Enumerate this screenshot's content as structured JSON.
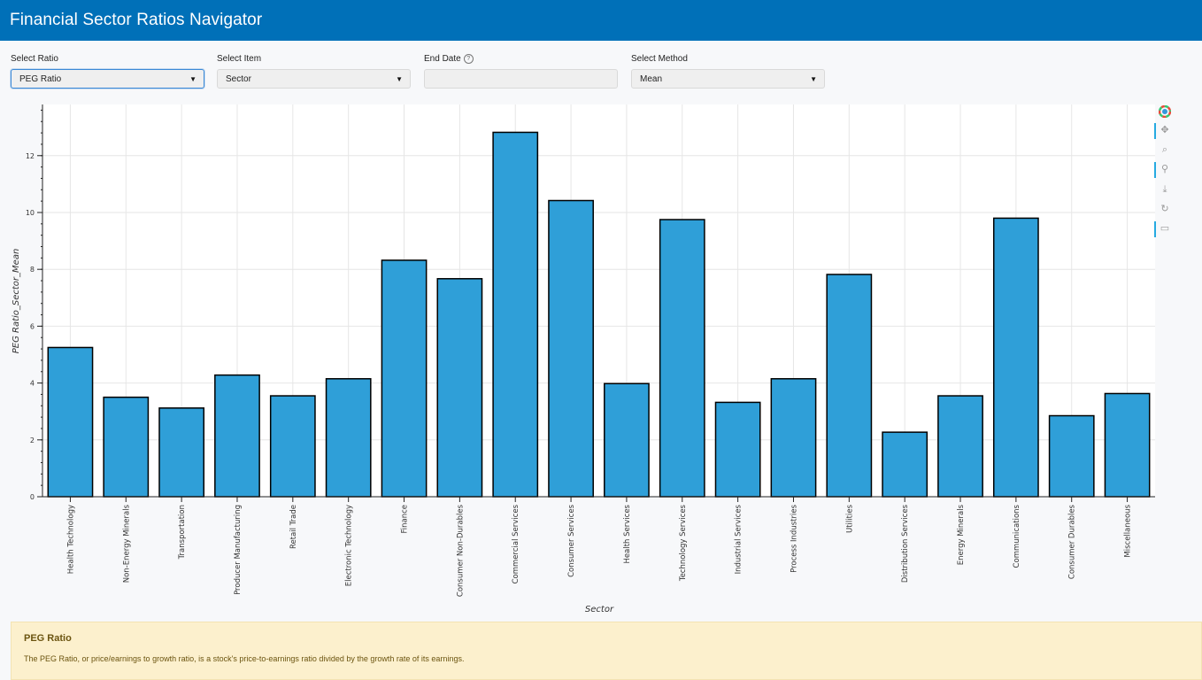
{
  "app": {
    "title": "Financial Sector Ratios Navigator"
  },
  "controls": {
    "ratio": {
      "label": "Select Ratio",
      "value": "PEG Ratio"
    },
    "item": {
      "label": "Select Item",
      "value": "Sector"
    },
    "end_date": {
      "label": "End Date",
      "value": ""
    },
    "method": {
      "label": "Select Method",
      "value": "Mean"
    }
  },
  "toolbar": {
    "icons": [
      "bokeh-logo-icon",
      "pan-icon",
      "box-zoom-icon",
      "wheel-zoom-icon",
      "save-icon",
      "reset-icon",
      "hover-icon"
    ]
  },
  "colors": {
    "header": "#0070b8",
    "bar": "#2f9fd8",
    "bar_border": "#000000",
    "info_bg": "#fcf0cd"
  },
  "chart_data": {
    "type": "bar",
    "xlabel": "Sector",
    "ylabel": "PEG Ratio_Sector_Mean",
    "ylim": [
      0,
      13.8
    ],
    "yticks": [
      0,
      2,
      4,
      6,
      8,
      10,
      12
    ],
    "grid": true,
    "categories": [
      "Health Technology",
      "Non-Energy Minerals",
      "Transportation",
      "Producer Manufacturing",
      "Retail Trade",
      "Electronic Technology",
      "Finance",
      "Consumer Non-Durables",
      "Commercial Services",
      "Consumer Services",
      "Health Services",
      "Technology Services",
      "Industrial Services",
      "Process Industries",
      "Utilities",
      "Distribution Services",
      "Energy Minerals",
      "Communications",
      "Consumer Durables",
      "Miscellaneous"
    ],
    "values": [
      5.25,
      3.5,
      3.12,
      4.28,
      3.55,
      4.15,
      8.32,
      7.67,
      12.82,
      10.42,
      3.98,
      9.75,
      3.32,
      4.15,
      7.82,
      2.27,
      3.55,
      9.8,
      2.85,
      3.63
    ]
  },
  "info": {
    "title": "PEG Ratio",
    "text": "The PEG Ratio, or price/earnings to growth ratio, is a stock's price-to-earnings ratio divided by the growth rate of its earnings."
  }
}
